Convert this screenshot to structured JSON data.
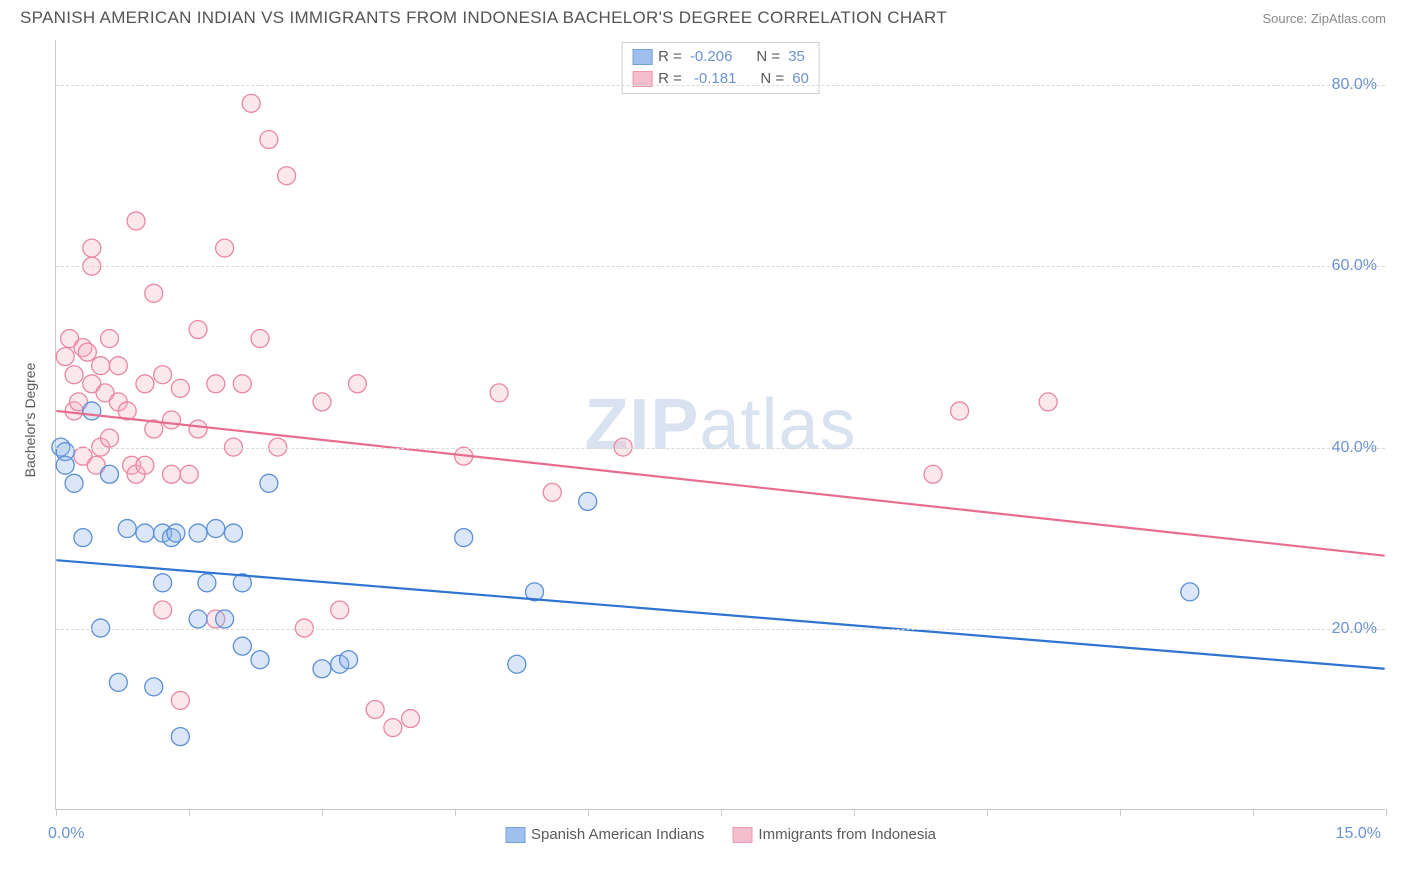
{
  "title": "SPANISH AMERICAN INDIAN VS IMMIGRANTS FROM INDONESIA BACHELOR'S DEGREE CORRELATION CHART",
  "source": "Source: ZipAtlas.com",
  "y_axis_title": "Bachelor's Degree",
  "watermark_bold": "ZIP",
  "watermark_rest": "atlas",
  "chart": {
    "type": "scatter",
    "xlim": [
      0,
      15
    ],
    "ylim": [
      0,
      85
    ],
    "x_ticks": [
      0,
      1.5,
      3,
      4.5,
      6,
      7.5,
      9,
      10.5,
      12,
      13.5,
      15
    ],
    "x_labels_shown": {
      "0": "0.0%",
      "15": "15.0%"
    },
    "y_gridlines": [
      20,
      40,
      60,
      80
    ],
    "y_labels": [
      "20.0%",
      "40.0%",
      "60.0%",
      "80.0%"
    ],
    "background_color": "#ffffff",
    "grid_color": "#d9d9d9",
    "axis_color": "#c9c9c9",
    "label_color": "#6a93d4",
    "marker_radius": 9,
    "marker_fill_opacity": 0.32,
    "marker_stroke_width": 1.3,
    "line_width": 2.2
  },
  "series": {
    "blue": {
      "label": "Spanish American Indians",
      "fill": "#8fb5ea",
      "stroke": "#5b8fd6",
      "line_color": "#2e74d0",
      "R": "-0.206",
      "N": "35",
      "trend": {
        "x1": 0,
        "y1": 27.5,
        "x2": 15,
        "y2": 15.5
      },
      "points": [
        [
          0.05,
          40
        ],
        [
          0.1,
          39.5
        ],
        [
          0.1,
          38
        ],
        [
          0.2,
          36
        ],
        [
          0.3,
          30
        ],
        [
          0.4,
          44
        ],
        [
          0.5,
          20
        ],
        [
          0.6,
          37
        ],
        [
          0.7,
          14
        ],
        [
          0.8,
          31
        ],
        [
          1.0,
          30.5
        ],
        [
          1.1,
          13.5
        ],
        [
          1.2,
          30.5
        ],
        [
          1.2,
          25
        ],
        [
          1.3,
          30
        ],
        [
          1.35,
          30.5
        ],
        [
          1.4,
          8
        ],
        [
          1.6,
          21
        ],
        [
          1.6,
          30.5
        ],
        [
          1.7,
          25
        ],
        [
          1.8,
          31
        ],
        [
          1.9,
          21
        ],
        [
          2.0,
          30.5
        ],
        [
          2.1,
          25
        ],
        [
          2.1,
          18
        ],
        [
          2.3,
          16.5
        ],
        [
          2.4,
          36
        ],
        [
          3.0,
          15.5
        ],
        [
          3.2,
          16
        ],
        [
          3.3,
          16.5
        ],
        [
          4.6,
          30
        ],
        [
          5.2,
          16
        ],
        [
          5.4,
          24
        ],
        [
          6.0,
          34
        ],
        [
          12.8,
          24
        ]
      ]
    },
    "pink": {
      "label": "Immigrants from Indonesia",
      "fill": "#f4b3c5",
      "stroke": "#ea87a3",
      "line_color": "#e76d8f",
      "R": "-0.181",
      "N": "60",
      "trend": {
        "x1": 0,
        "y1": 44,
        "x2": 15,
        "y2": 28
      },
      "points": [
        [
          0.1,
          50
        ],
        [
          0.15,
          52
        ],
        [
          0.2,
          48
        ],
        [
          0.2,
          44
        ],
        [
          0.25,
          45
        ],
        [
          0.3,
          51
        ],
        [
          0.3,
          39
        ],
        [
          0.35,
          50.5
        ],
        [
          0.4,
          47
        ],
        [
          0.4,
          60
        ],
        [
          0.45,
          38
        ],
        [
          0.4,
          62
        ],
        [
          0.5,
          49
        ],
        [
          0.5,
          40
        ],
        [
          0.55,
          46
        ],
        [
          0.6,
          52
        ],
        [
          0.6,
          41
        ],
        [
          0.7,
          49
        ],
        [
          0.7,
          45
        ],
        [
          0.8,
          44
        ],
        [
          0.85,
          38
        ],
        [
          0.9,
          65
        ],
        [
          0.9,
          37
        ],
        [
          1.0,
          47
        ],
        [
          1.0,
          38
        ],
        [
          1.1,
          57
        ],
        [
          1.1,
          42
        ],
        [
          1.2,
          48
        ],
        [
          1.2,
          22
        ],
        [
          1.3,
          43
        ],
        [
          1.3,
          37
        ],
        [
          1.4,
          46.5
        ],
        [
          1.4,
          12
        ],
        [
          1.5,
          37
        ],
        [
          1.6,
          53
        ],
        [
          1.6,
          42
        ],
        [
          1.8,
          47
        ],
        [
          1.8,
          21
        ],
        [
          1.9,
          62
        ],
        [
          2.0,
          40
        ],
        [
          2.1,
          47
        ],
        [
          2.2,
          78
        ],
        [
          2.3,
          52
        ],
        [
          2.4,
          74
        ],
        [
          2.5,
          40
        ],
        [
          2.6,
          70
        ],
        [
          2.8,
          20
        ],
        [
          3.0,
          45
        ],
        [
          3.2,
          22
        ],
        [
          3.4,
          47
        ],
        [
          3.6,
          11
        ],
        [
          3.8,
          9
        ],
        [
          4.0,
          10
        ],
        [
          4.6,
          39
        ],
        [
          5.0,
          46
        ],
        [
          5.6,
          35
        ],
        [
          6.4,
          40
        ],
        [
          9.9,
          37
        ],
        [
          10.2,
          44
        ],
        [
          11.2,
          45
        ]
      ]
    }
  },
  "stat_box": {
    "r_label": "R =",
    "n_label": "N ="
  }
}
